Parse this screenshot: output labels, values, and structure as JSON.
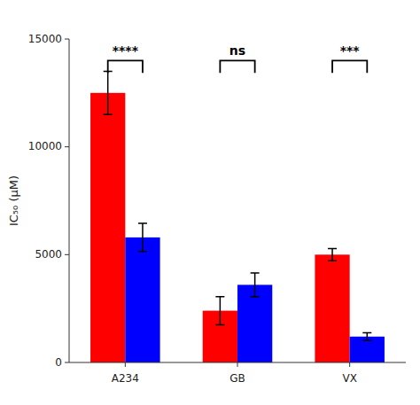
{
  "chart_data": {
    "type": "bar",
    "categories": [
      "A234",
      "GB",
      "VX"
    ],
    "series": [
      {
        "color": "#FF0000",
        "values": [
          12500,
          2400,
          5000
        ],
        "errors": [
          1000,
          650,
          280
        ]
      },
      {
        "color": "#0000FF",
        "values": [
          5800,
          3600,
          1200
        ],
        "errors": [
          650,
          550,
          180
        ]
      }
    ],
    "y_label": "IC₅₀ (μM)",
    "ylim": [
      0,
      15000
    ],
    "yticks": [
      0,
      5000,
      10000,
      15000
    ],
    "grid": false,
    "annotations": [
      {
        "text": "****",
        "category": 0,
        "y": 14000
      },
      {
        "text": "ns",
        "category": 1,
        "y": 14000
      },
      {
        "text": "***",
        "category": 2,
        "y": 14000
      }
    ]
  }
}
